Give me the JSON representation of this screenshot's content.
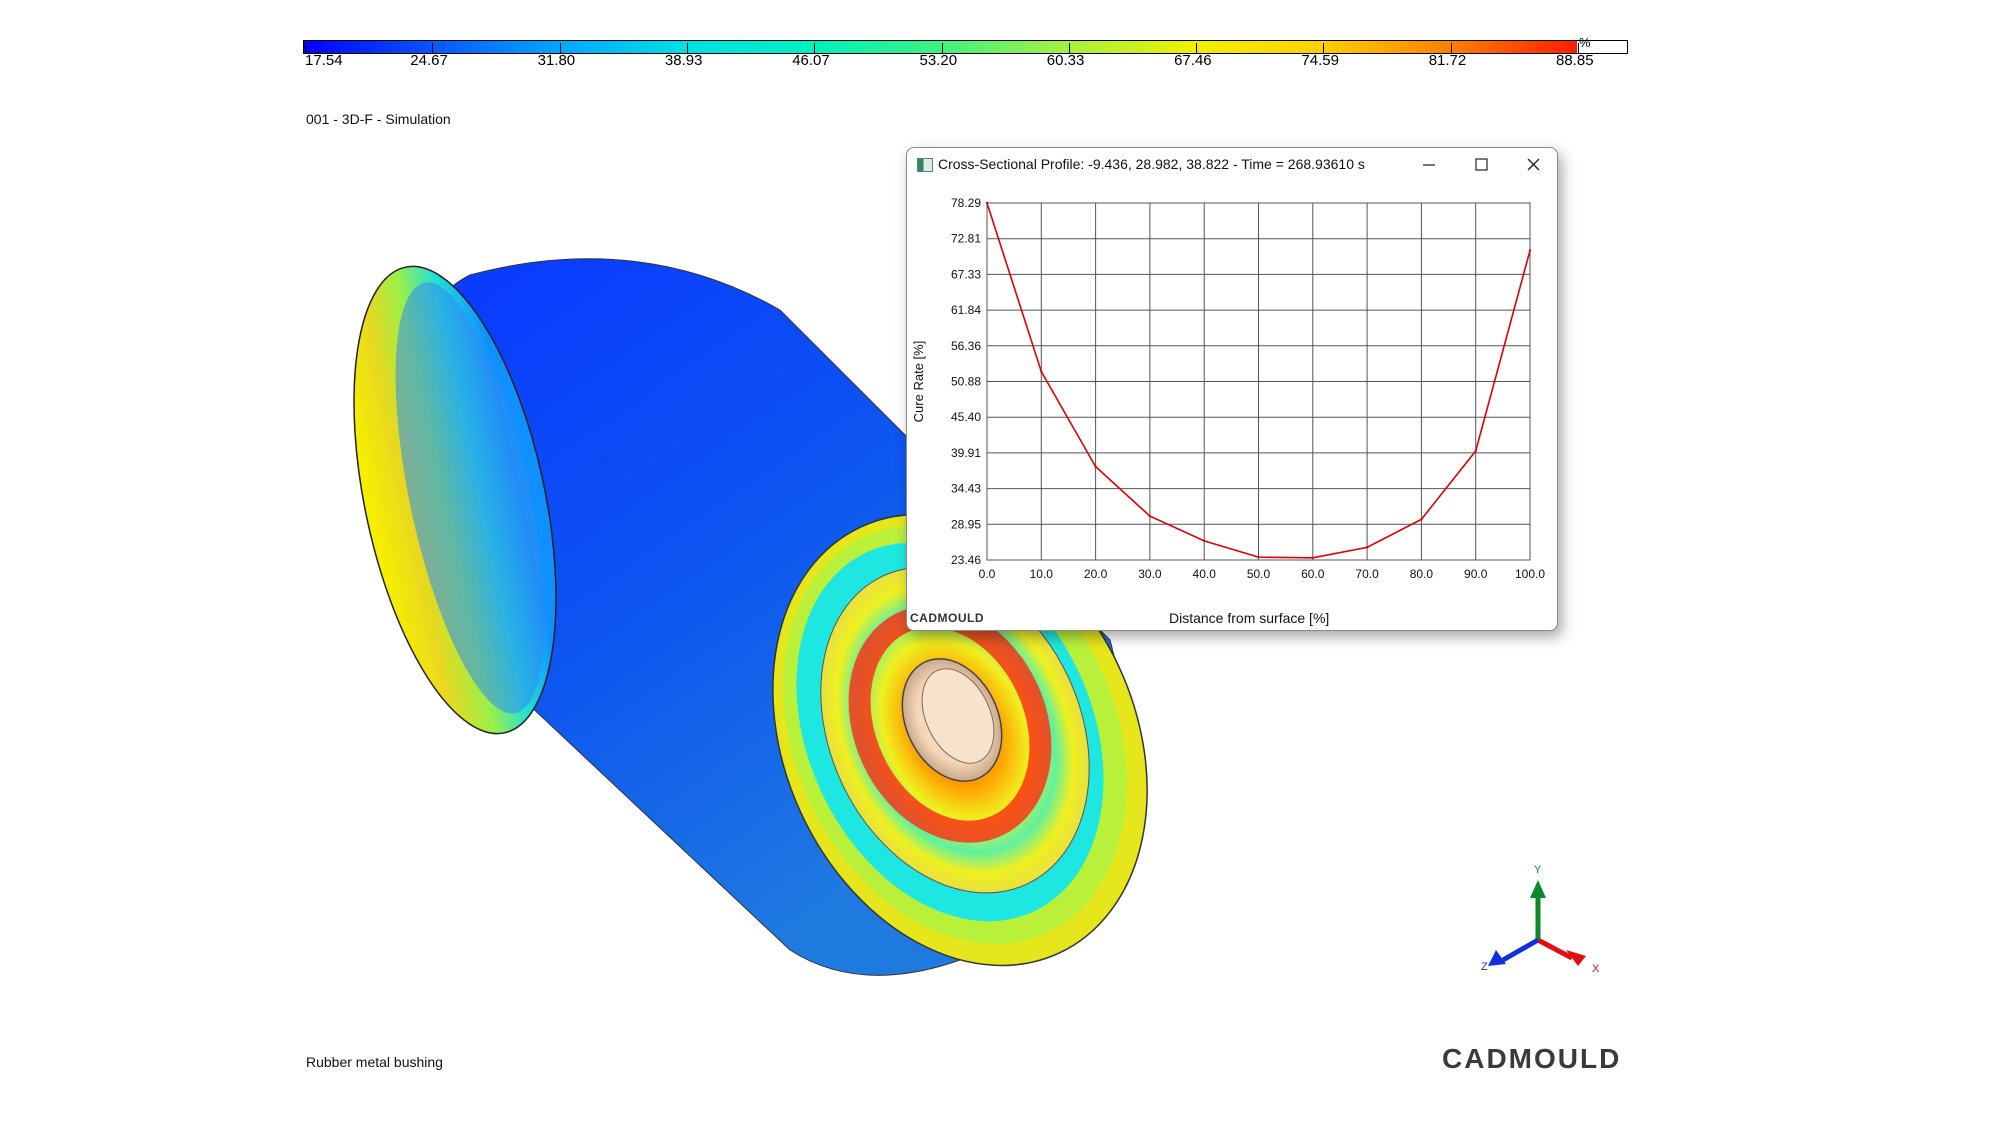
{
  "colorbar": {
    "unit": "%",
    "ticks": [
      "17.54",
      "24.67",
      "31.80",
      "38.93",
      "46.07",
      "53.20",
      "60.33",
      "67.46",
      "74.59",
      "81.72",
      "88.85"
    ],
    "colors": [
      "#0000ff",
      "#0a55ff",
      "#00a6ff",
      "#00e0e6",
      "#00f0c0",
      "#40f080",
      "#a6f040",
      "#f0f000",
      "#ffd000",
      "#ff8000",
      "#ff1e00"
    ]
  },
  "project_label": "001 - 3D-F - Simulation",
  "caption": "Rubber metal bushing",
  "brand": "CADMOULD",
  "triad": {
    "x": "X",
    "y": "Y",
    "z": "Z"
  },
  "window": {
    "title": "Cross-Sectional Profile: -9.436, 28.982, 38.822  -  Time = 268.93610 s",
    "brand": "CADMOULD",
    "icons": {
      "minimize": "minimize-icon",
      "maximize": "maximize-icon",
      "close": "close-icon"
    }
  },
  "chart_data": {
    "type": "line",
    "xlabel": "Distance from surface [%]",
    "ylabel": "Cure Rate [%]",
    "x_ticks": [
      "0.0",
      "10.0",
      "20.0",
      "30.0",
      "40.0",
      "50.0",
      "60.0",
      "70.0",
      "80.0",
      "90.0",
      "100.0"
    ],
    "y_ticks": [
      "78.29",
      "72.81",
      "67.33",
      "61.84",
      "56.36",
      "50.88",
      "45.40",
      "39.91",
      "34.43",
      "28.95",
      "23.46"
    ],
    "xlim": [
      0,
      100
    ],
    "ylim": [
      23.46,
      78.29
    ],
    "grid": true,
    "line_color": "#e00000",
    "series": [
      {
        "x": [
          0,
          10,
          20,
          30,
          40,
          50,
          60,
          70,
          80,
          90,
          100
        ],
        "y": [
          78.29,
          52.4,
          37.8,
          30.2,
          26.4,
          23.9,
          23.8,
          25.4,
          29.7,
          40.2,
          71.0
        ]
      }
    ]
  }
}
